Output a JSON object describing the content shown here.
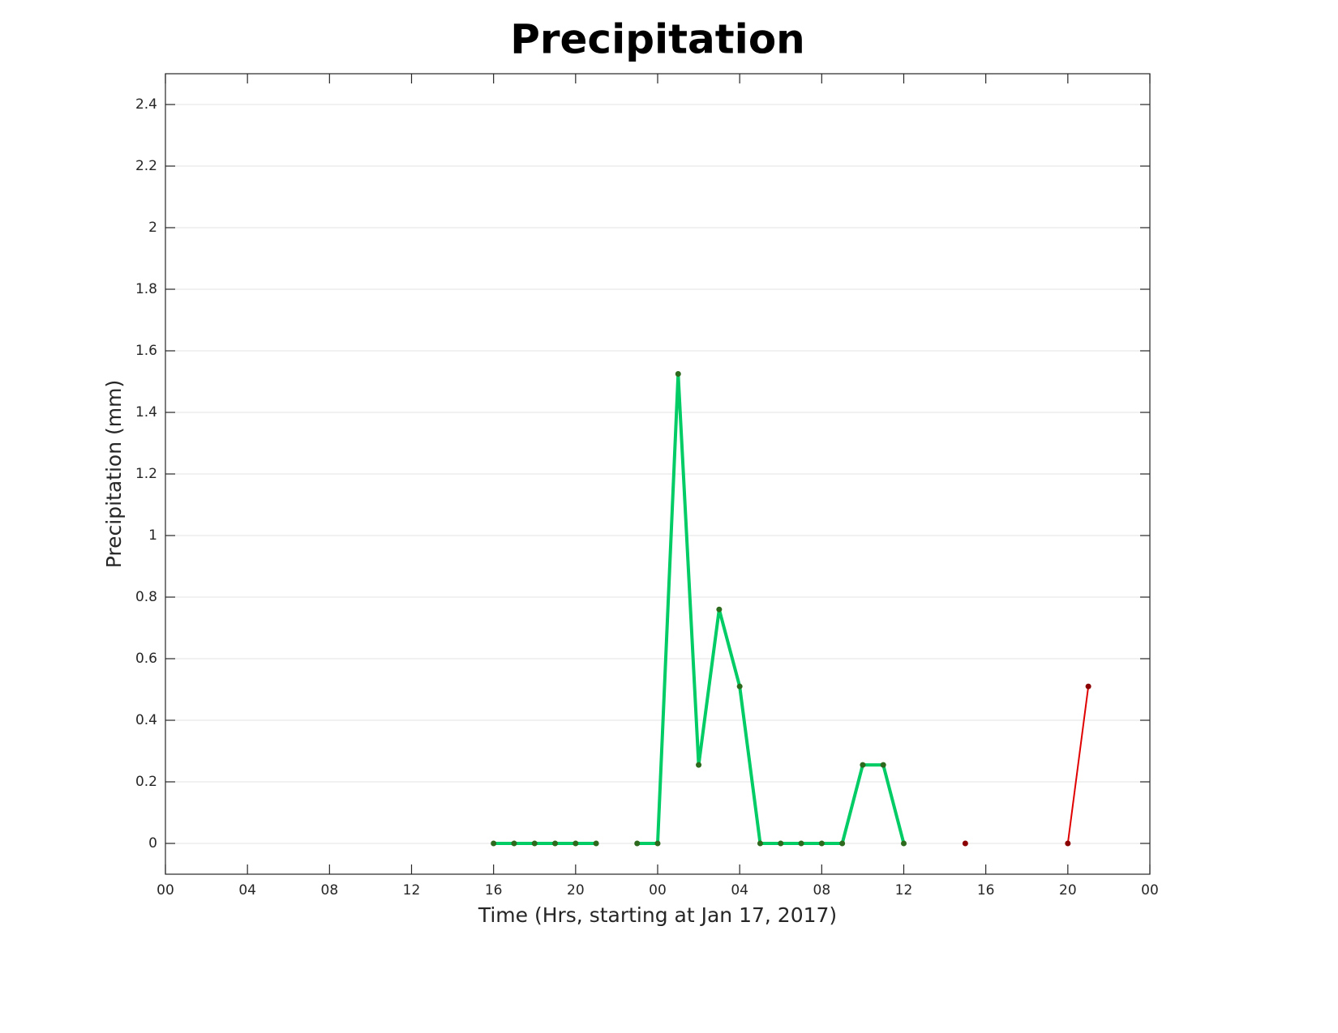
{
  "chart_data": {
    "type": "line",
    "title": "Precipitation",
    "x_label": "Time (Hrs, starting at Jan 17, 2017)",
    "y_label": "Precipitation (mm)",
    "x": [
      16,
      17,
      18,
      19,
      20,
      21,
      22,
      23,
      24,
      25,
      26,
      27,
      28,
      29,
      30,
      31,
      32,
      33,
      34,
      35,
      36,
      37,
      38,
      39,
      40,
      41,
      42,
      43,
      44,
      45
    ],
    "series": [
      {
        "color": "#00cc66",
        "marker_color": "#2d6a1e",
        "line_width": 4,
        "values": [
          0,
          0,
          0,
          0,
          0,
          0,
          null,
          0,
          0,
          1.525,
          0.255,
          0.76,
          0.51,
          0,
          0,
          0,
          0,
          0,
          0.255,
          0.255,
          0,
          null,
          null,
          null,
          null,
          null,
          null,
          null,
          null,
          null
        ]
      },
      {
        "color": "#e00000",
        "marker_color": "#8b0000",
        "line_width": 2,
        "values": [
          null,
          null,
          null,
          null,
          null,
          null,
          null,
          null,
          null,
          null,
          null,
          null,
          null,
          null,
          null,
          null,
          null,
          null,
          null,
          null,
          null,
          null,
          null,
          0,
          null,
          null,
          null,
          null,
          0,
          0.51
        ]
      }
    ],
    "xlim": [
      0,
      48
    ],
    "xticks": [
      {
        "value": 0,
        "label": "00"
      },
      {
        "value": 4,
        "label": "04"
      },
      {
        "value": 8,
        "label": "08"
      },
      {
        "value": 12,
        "label": "12"
      },
      {
        "value": 16,
        "label": "16"
      },
      {
        "value": 20,
        "label": "20"
      },
      {
        "value": 24,
        "label": "00"
      },
      {
        "value": 28,
        "label": "04"
      },
      {
        "value": 32,
        "label": "08"
      },
      {
        "value": 36,
        "label": "12"
      },
      {
        "value": 40,
        "label": "16"
      },
      {
        "value": 44,
        "label": "20"
      },
      {
        "value": 48,
        "label": "00"
      }
    ],
    "ylim": [
      -0.1,
      2.5
    ],
    "yticks": [
      0,
      0.2,
      0.4,
      0.6,
      0.8,
      1,
      1.2,
      1.4,
      1.6,
      1.8,
      2,
      2.2,
      2.4
    ],
    "grid": "y"
  }
}
